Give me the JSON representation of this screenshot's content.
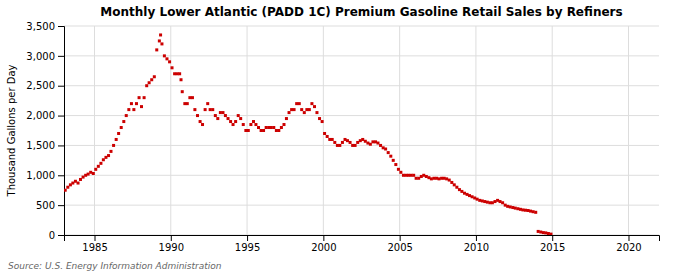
{
  "chart_data": {
    "type": "scatter",
    "title": "Monthly Lower Atlantic (PADD 1C) Premium Gasoline Retail Sales by Refiners",
    "y_label": "Thousand Gallons per Day",
    "annotations": [
      "Source: U.S. Energy Information Administration"
    ],
    "color": "#cc0000",
    "marker": "square",
    "grid": true,
    "xlim": [
      1983.0,
      2022.0
    ],
    "ylim": [
      0,
      3500
    ],
    "xticks": [
      1985,
      1990,
      1995,
      2000,
      2005,
      2010,
      2015,
      2020
    ],
    "yticks": [
      0,
      500,
      {
        "value": 1000,
        "label": "1,000"
      },
      {
        "value": 1500,
        "label": "1,500"
      },
      {
        "value": 2000,
        "label": "2,000"
      },
      {
        "value": 2500,
        "label": "2,500"
      },
      {
        "value": 3000,
        "label": "3,000"
      },
      {
        "value": 3500,
        "label": "3,500"
      }
    ],
    "x": [
      1983.08,
      1983.25,
      1983.42,
      1983.58,
      1983.75,
      1983.92,
      1984.08,
      1984.25,
      1984.42,
      1984.58,
      1984.75,
      1984.92,
      1985.08,
      1985.25,
      1985.42,
      1985.58,
      1985.75,
      1985.92,
      1986.08,
      1986.25,
      1986.42,
      1986.58,
      1986.75,
      1986.92,
      1987.08,
      1987.25,
      1987.42,
      1987.58,
      1987.75,
      1987.92,
      1988.08,
      1988.25,
      1988.42,
      1988.58,
      1988.75,
      1988.92,
      1989.08,
      1989.25,
      1989.33,
      1989.42,
      1989.58,
      1989.75,
      1989.92,
      1990.08,
      1990.25,
      1990.42,
      1990.58,
      1990.67,
      1990.75,
      1990.92,
      1991.08,
      1991.25,
      1991.42,
      1991.58,
      1991.75,
      1991.92,
      1992.08,
      1992.25,
      1992.42,
      1992.58,
      1992.75,
      1992.92,
      1993.08,
      1993.25,
      1993.42,
      1993.58,
      1993.75,
      1993.92,
      1994.08,
      1994.25,
      1994.42,
      1994.58,
      1994.75,
      1994.92,
      1995.08,
      1995.25,
      1995.42,
      1995.58,
      1995.75,
      1995.92,
      1996.08,
      1996.25,
      1996.42,
      1996.58,
      1996.75,
      1996.92,
      1997.08,
      1997.25,
      1997.42,
      1997.58,
      1997.75,
      1997.92,
      1998.08,
      1998.25,
      1998.42,
      1998.58,
      1998.75,
      1998.92,
      1999.08,
      1999.25,
      1999.42,
      1999.58,
      1999.75,
      1999.92,
      2000.08,
      2000.25,
      2000.42,
      2000.58,
      2000.75,
      2000.92,
      2001.08,
      2001.25,
      2001.42,
      2001.58,
      2001.75,
      2001.92,
      2002.08,
      2002.25,
      2002.42,
      2002.58,
      2002.75,
      2002.92,
      2003.08,
      2003.25,
      2003.42,
      2003.58,
      2003.75,
      2003.92,
      2004.08,
      2004.25,
      2004.42,
      2004.58,
      2004.75,
      2004.92,
      2005.08,
      2005.25,
      2005.42,
      2005.58,
      2005.75,
      2005.92,
      2006.08,
      2006.25,
      2006.42,
      2006.58,
      2006.75,
      2006.92,
      2007.08,
      2007.25,
      2007.42,
      2007.58,
      2007.75,
      2007.92,
      2008.08,
      2008.25,
      2008.42,
      2008.58,
      2008.75,
      2008.92,
      2009.08,
      2009.25,
      2009.42,
      2009.58,
      2009.75,
      2009.92,
      2010.08,
      2010.25,
      2010.42,
      2010.58,
      2010.75,
      2010.92,
      2011.08,
      2011.25,
      2011.42,
      2011.58,
      2011.75,
      2011.92,
      2012.08,
      2012.25,
      2012.42,
      2012.58,
      2012.75,
      2012.92,
      2013.08,
      2013.25,
      2013.42,
      2013.58,
      2013.75,
      2013.92,
      2014.08,
      2014.25,
      2014.42,
      2014.58,
      2014.75,
      2014.92
    ],
    "values": [
      750,
      800,
      840,
      870,
      900,
      870,
      930,
      970,
      1000,
      1020,
      1050,
      1030,
      1100,
      1150,
      1200,
      1260,
      1300,
      1330,
      1400,
      1500,
      1600,
      1700,
      1800,
      1900,
      2000,
      2100,
      2200,
      2100,
      2200,
      2300,
      2150,
      2300,
      2500,
      2550,
      2600,
      2650,
      3100,
      3250,
      3350,
      3200,
      3000,
      2950,
      2900,
      2800,
      2700,
      2700,
      2700,
      2600,
      2400,
      2200,
      2200,
      2300,
      2300,
      2100,
      2000,
      1900,
      1850,
      2100,
      2200,
      2100,
      2100,
      2000,
      1950,
      2050,
      2050,
      2000,
      1950,
      1900,
      1850,
      1900,
      2000,
      1950,
      1850,
      1750,
      1750,
      1850,
      1900,
      1850,
      1800,
      1750,
      1750,
      1800,
      1800,
      1800,
      1800,
      1750,
      1750,
      1800,
      1850,
      1950,
      2050,
      2100,
      2100,
      2200,
      2200,
      2100,
      2050,
      2100,
      2100,
      2200,
      2150,
      2050,
      1950,
      1900,
      1700,
      1650,
      1600,
      1600,
      1550,
      1500,
      1500,
      1550,
      1600,
      1580,
      1550,
      1500,
      1500,
      1550,
      1580,
      1600,
      1570,
      1540,
      1520,
      1560,
      1560,
      1540,
      1500,
      1460,
      1440,
      1380,
      1320,
      1250,
      1180,
      1100,
      1050,
      1000,
      1000,
      1000,
      1000,
      1000,
      950,
      950,
      980,
      1000,
      980,
      960,
      940,
      950,
      950,
      940,
      950,
      950,
      940,
      920,
      880,
      840,
      800,
      760,
      730,
      700,
      680,
      660,
      640,
      620,
      600,
      580,
      570,
      560,
      550,
      540,
      540,
      560,
      580,
      560,
      540,
      500,
      480,
      470,
      460,
      450,
      440,
      430,
      420,
      415,
      410,
      400,
      390,
      380,
      60,
      50,
      40,
      35,
      25,
      15
    ]
  }
}
